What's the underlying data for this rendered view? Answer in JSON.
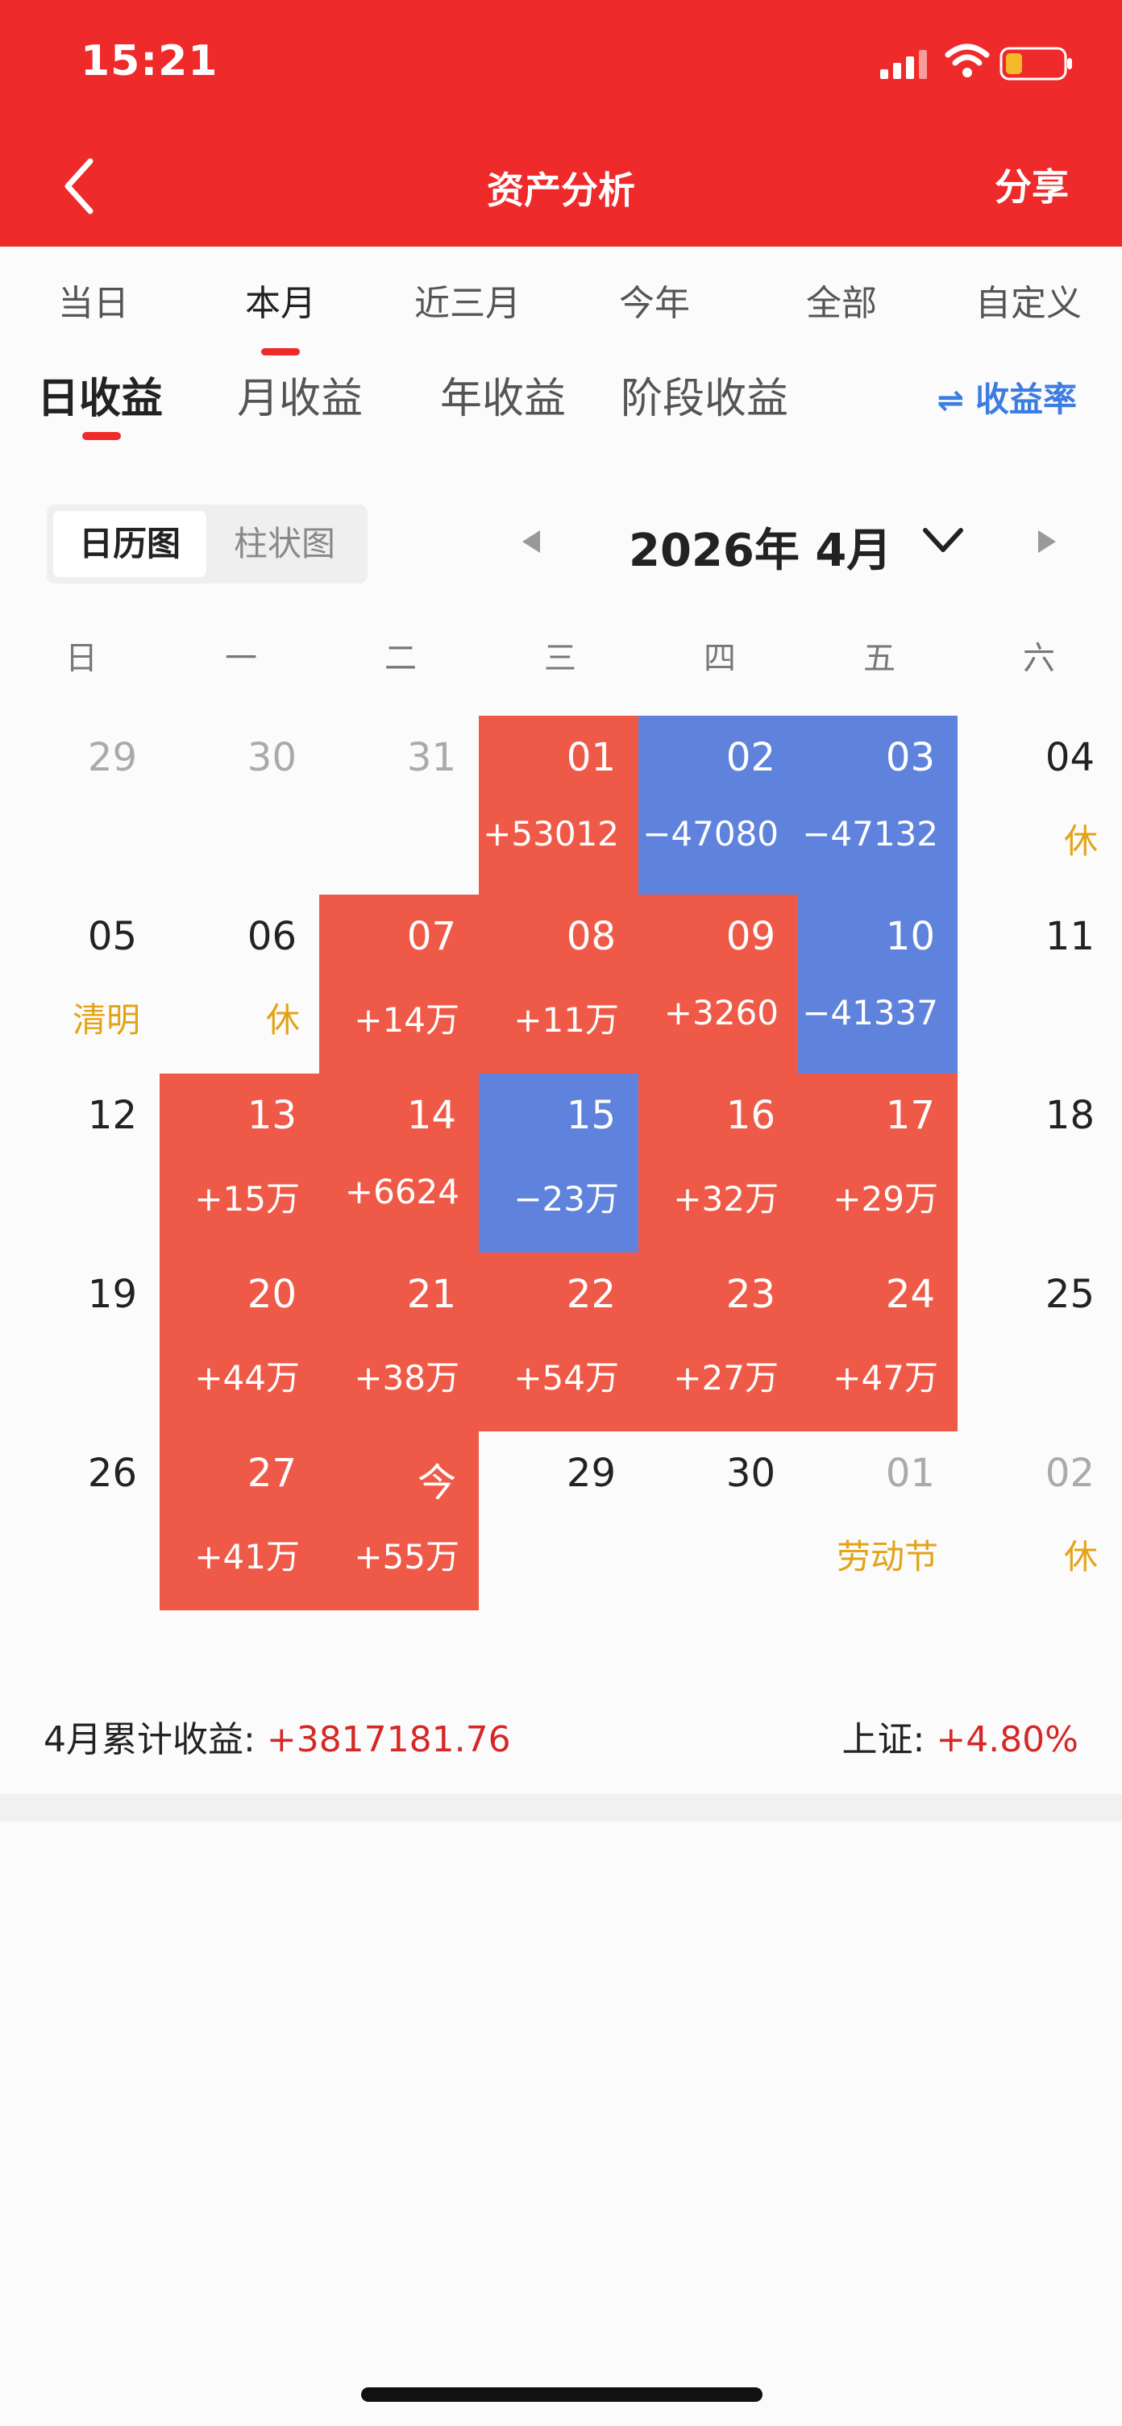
{
  "status_bar": {
    "time": "15:21"
  },
  "header": {
    "title": "资产分析",
    "share": "分享"
  },
  "period_tabs": [
    "当日",
    "本月",
    "近三月",
    "今年",
    "全部",
    "自定义"
  ],
  "period_active": "本月",
  "return_tabs": [
    "日收益",
    "月收益",
    "年收益",
    "阶段收益"
  ],
  "return_active": "日收益",
  "rate_toggle": "收益率",
  "view_toggle": {
    "calendar": "日历图",
    "bar": "柱状图"
  },
  "month": {
    "label": "2026年 4月"
  },
  "weekdays": [
    "日",
    "一",
    "二",
    "三",
    "四",
    "五",
    "六"
  ],
  "calendar_days": [
    {
      "day": "29",
      "value": "",
      "type": "dim"
    },
    {
      "day": "30",
      "value": "",
      "type": "dim"
    },
    {
      "day": "31",
      "value": "",
      "type": "dim"
    },
    {
      "day": "01",
      "value": "+53012",
      "type": "red"
    },
    {
      "day": "02",
      "value": "−47080",
      "type": "blue"
    },
    {
      "day": "03",
      "value": "−47132",
      "type": "blue"
    },
    {
      "day": "04",
      "value": "休",
      "type": "plain-holiday"
    },
    {
      "day": "05",
      "value": "清明",
      "type": "plain-holiday"
    },
    {
      "day": "06",
      "value": "休",
      "type": "plain-holiday"
    },
    {
      "day": "07",
      "value": "+14万",
      "type": "red"
    },
    {
      "day": "08",
      "value": "+11万",
      "type": "red"
    },
    {
      "day": "09",
      "value": "+3260",
      "type": "red"
    },
    {
      "day": "10",
      "value": "−41337",
      "type": "blue"
    },
    {
      "day": "11",
      "value": "",
      "type": "plain"
    },
    {
      "day": "12",
      "value": "",
      "type": "plain"
    },
    {
      "day": "13",
      "value": "+15万",
      "type": "red"
    },
    {
      "day": "14",
      "value": "+6624",
      "type": "red"
    },
    {
      "day": "15",
      "value": "−23万",
      "type": "blue"
    },
    {
      "day": "16",
      "value": "+32万",
      "type": "red"
    },
    {
      "day": "17",
      "value": "+29万",
      "type": "red"
    },
    {
      "day": "18",
      "value": "",
      "type": "plain"
    },
    {
      "day": "19",
      "value": "",
      "type": "plain"
    },
    {
      "day": "20",
      "value": "+44万",
      "type": "red"
    },
    {
      "day": "21",
      "value": "+38万",
      "type": "red"
    },
    {
      "day": "22",
      "value": "+54万",
      "type": "red"
    },
    {
      "day": "23",
      "value": "+27万",
      "type": "red"
    },
    {
      "day": "24",
      "value": "+47万",
      "type": "red"
    },
    {
      "day": "25",
      "value": "",
      "type": "plain"
    },
    {
      "day": "26",
      "value": "",
      "type": "plain"
    },
    {
      "day": "27",
      "value": "+41万",
      "type": "red"
    },
    {
      "day": "今",
      "value": "+55万",
      "type": "red"
    },
    {
      "day": "29",
      "value": "",
      "type": "plain"
    },
    {
      "day": "30",
      "value": "",
      "type": "plain"
    },
    {
      "day": "01",
      "value": "劳动节",
      "type": "dim-holiday"
    },
    {
      "day": "02",
      "value": "休",
      "type": "dim-holiday"
    }
  ],
  "summary": {
    "label": "4月累计收益:",
    "value": "+3817181.76",
    "index_label": "上证:",
    "index_value": "+4.80%"
  },
  "colors": {
    "header": "#ee2a2a",
    "gain": "#ef5a48",
    "loss": "#5f82dd",
    "holiday": "#e3a317",
    "rate": "#3b7de0"
  }
}
